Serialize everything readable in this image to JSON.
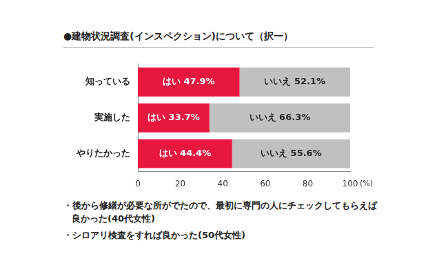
{
  "chart_data": {
    "type": "bar",
    "title": "●建物状況調査(インスペクション)について（択一）",
    "orientation": "horizontal",
    "stacked": true,
    "data_labels": true,
    "grid": false,
    "categories": [
      "知っている",
      "実施した",
      "やりたかった"
    ],
    "series": [
      {
        "name": "はい",
        "color": "#e8173f",
        "values": [
          47.9,
          33.7,
          44.4
        ],
        "value_labels": [
          "はい 47.9%",
          "はい 33.7%",
          "はい 44.4%"
        ]
      },
      {
        "name": "いいえ",
        "color": "#c0c0c0",
        "values": [
          52.1,
          66.3,
          55.6
        ],
        "value_labels": [
          "いいえ 52.1%",
          "いいえ 66.3%",
          "いいえ 55.6%"
        ]
      }
    ],
    "xlim": [
      0,
      100
    ],
    "xticks": [
      0,
      20,
      40,
      60,
      80,
      100
    ],
    "xlabel": "(%)",
    "notes": [
      "・後から修繕が必要な所がでたので、最初に専門の人にチェックしてもらえば良かった(40代女性)",
      "・シロアリ検査をすれば良かった(50代女性)"
    ]
  }
}
